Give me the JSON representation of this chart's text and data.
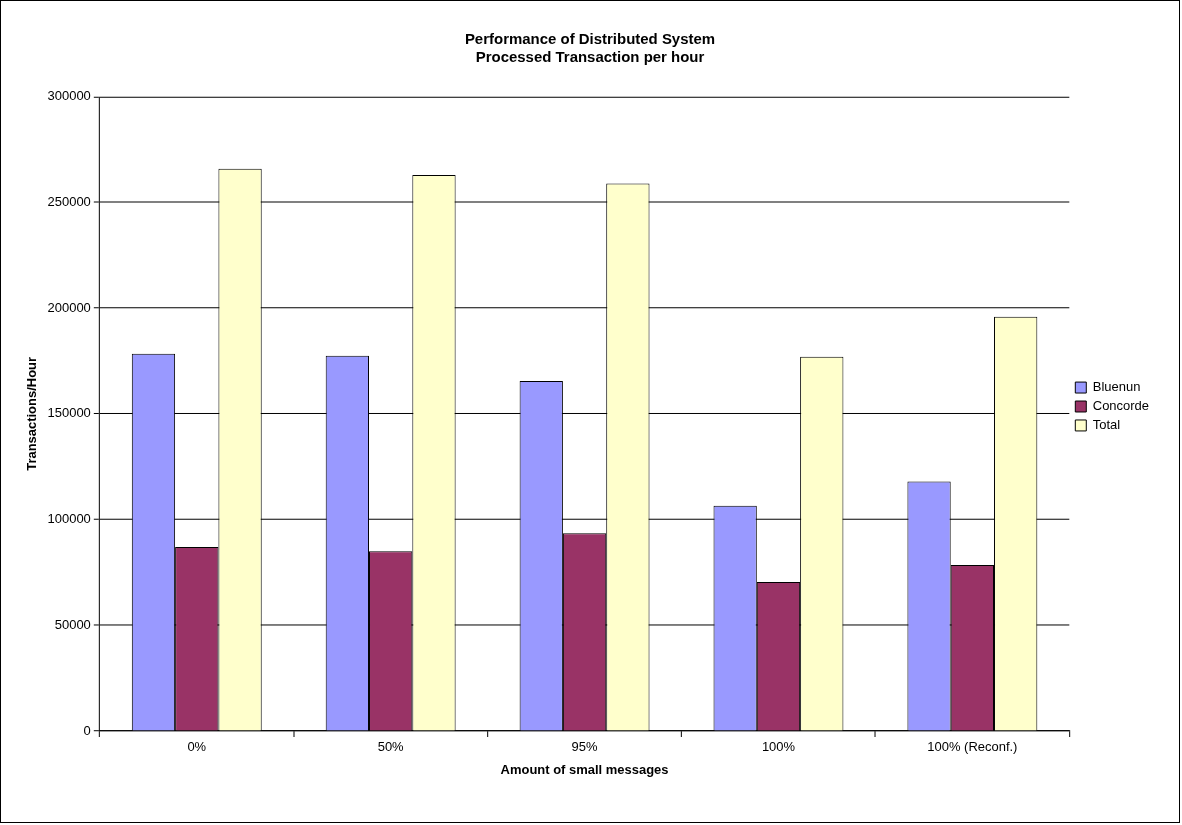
{
  "chart_data": {
    "type": "bar",
    "title": "Performance of Distributed System\nProcessed Transaction per hour",
    "xlabel": "Amount of small messages",
    "ylabel": "Transactions/Hour",
    "categories": [
      "0%",
      "50%",
      "95%",
      "100%",
      "100% (Reconf.)"
    ],
    "series": [
      {
        "name": "Bluenun",
        "color": "#9999ff",
        "values": [
          178500,
          177500,
          165500,
          106500,
          118000
        ]
      },
      {
        "name": "Concorde",
        "color": "#993366",
        "values": [
          87000,
          85000,
          93500,
          70500,
          78500
        ]
      },
      {
        "name": "Total",
        "color": "#ffffcc",
        "values": [
          266000,
          263000,
          259000,
          177000,
          196000
        ]
      }
    ],
    "ylim": [
      0,
      300000
    ],
    "yticks": [
      0,
      50000,
      100000,
      150000,
      200000,
      250000,
      300000
    ],
    "grid": "y",
    "legend": "right"
  }
}
